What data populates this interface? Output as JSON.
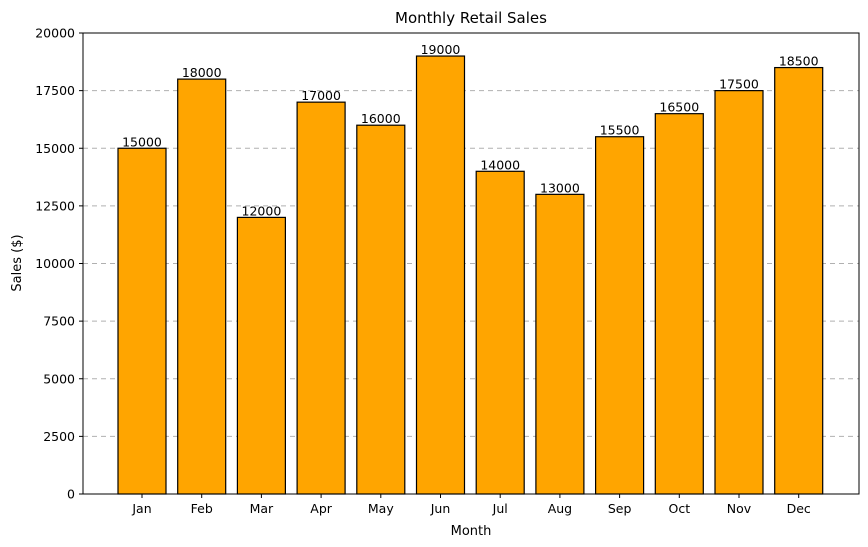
{
  "chart_data": {
    "type": "bar",
    "title": "Monthly Retail Sales",
    "xlabel": "Month",
    "ylabel": "Sales ($)",
    "categories": [
      "Jan",
      "Feb",
      "Mar",
      "Apr",
      "May",
      "Jun",
      "Jul",
      "Aug",
      "Sep",
      "Oct",
      "Nov",
      "Dec"
    ],
    "values": [
      15000,
      18000,
      12000,
      17000,
      16000,
      19000,
      14000,
      13000,
      15500,
      16500,
      17500,
      18500
    ],
    "data_labels": [
      "15000",
      "18000",
      "12000",
      "17000",
      "16000",
      "19000",
      "14000",
      "13000",
      "15500",
      "16500",
      "17500",
      "18500"
    ],
    "ylim": [
      0,
      20000
    ],
    "yticks": [
      0,
      2500,
      5000,
      7500,
      10000,
      12500,
      15000,
      17500,
      20000
    ],
    "ytick_labels": [
      "0",
      "2500",
      "5000",
      "7500",
      "10000",
      "12500",
      "15000",
      "17500",
      "20000"
    ],
    "grid": "y-dashed",
    "legend": "none",
    "colors": {
      "bar_fill": "#ffa500",
      "bar_edge": "#000000",
      "grid": "#b0b0b0"
    }
  }
}
